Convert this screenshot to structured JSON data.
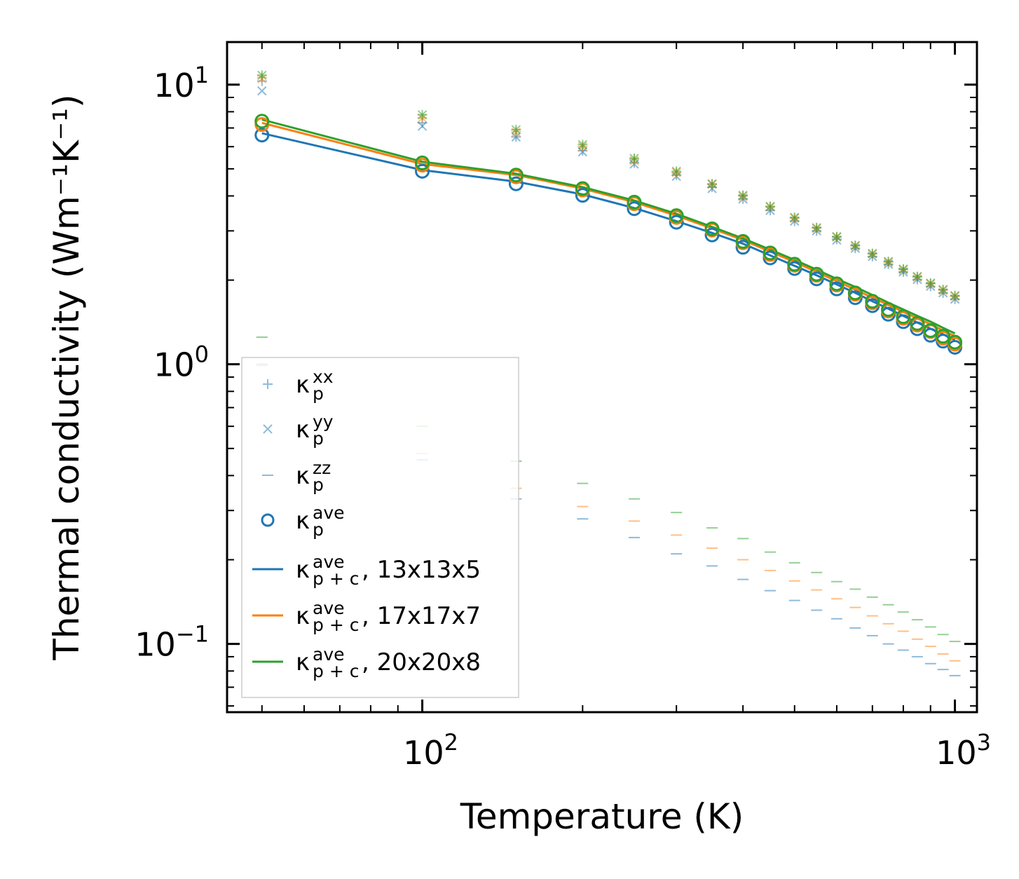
{
  "chart_data": {
    "type": "scatter",
    "xscale": "log",
    "yscale": "log",
    "xlim": [
      43,
      1100
    ],
    "ylim": [
      0.057,
      14.2
    ],
    "xlabel": "Temperature (K)",
    "ylabel": "Thermal conductivity (Wm⁻¹K⁻¹)",
    "xticks": [
      {
        "base": "10",
        "exp": "2"
      },
      {
        "base": "10",
        "exp": "3"
      }
    ],
    "yticks": [
      {
        "base": "10",
        "exp": "−1"
      },
      {
        "base": "10",
        "exp": "0"
      },
      {
        "base": "10",
        "exp": "1"
      }
    ],
    "colors": {
      "s13": "#1f77b4",
      "s17": "#ff7f0e",
      "s20": "#2ca02c"
    },
    "x": [
      50,
      100,
      150,
      200,
      250,
      300,
      350,
      400,
      450,
      500,
      550,
      600,
      650,
      700,
      750,
      800,
      850,
      900,
      950,
      1000
    ],
    "series": [
      {
        "name": "13x13x5",
        "kxx": [
          10.3,
          7.3,
          6.5,
          5.8,
          5.25,
          4.75,
          4.3,
          3.9,
          3.55,
          3.25,
          3.0,
          2.8,
          2.6,
          2.43,
          2.28,
          2.14,
          2.01,
          1.9,
          1.8,
          1.71
        ],
        "kyy": [
          9.5,
          7.1,
          6.5,
          5.75,
          5.2,
          4.7,
          4.25,
          3.9,
          3.55,
          3.25,
          3.0,
          2.78,
          2.6,
          2.43,
          2.28,
          2.14,
          2.01,
          1.9,
          1.8,
          1.71
        ],
        "kzz": [
          1.0,
          0.455,
          0.33,
          0.28,
          0.24,
          0.21,
          0.19,
          0.17,
          0.155,
          0.143,
          0.132,
          0.123,
          0.114,
          0.107,
          0.1,
          0.095,
          0.09,
          0.085,
          0.081,
          0.077
        ],
        "kave": [
          6.6,
          4.9,
          4.42,
          4.02,
          3.6,
          3.22,
          2.9,
          2.62,
          2.4,
          2.2,
          2.02,
          1.86,
          1.73,
          1.62,
          1.51,
          1.42,
          1.34,
          1.27,
          1.21,
          1.15
        ],
        "kpc": [
          6.7,
          4.95,
          4.5,
          4.05,
          3.62,
          3.25,
          2.95,
          2.7,
          2.45,
          2.25,
          2.08,
          1.93,
          1.8,
          1.68,
          1.58,
          1.49,
          1.41,
          1.34,
          1.28,
          1.22
        ]
      },
      {
        "name": "17x17x7",
        "kxx": [
          10.6,
          7.6,
          6.8,
          6.0,
          5.4,
          4.85,
          4.4,
          4.0,
          3.65,
          3.33,
          3.07,
          2.85,
          2.65,
          2.48,
          2.32,
          2.18,
          2.05,
          1.94,
          1.84,
          1.75
        ],
        "kyy": [
          10.5,
          7.6,
          6.75,
          6.0,
          5.35,
          4.85,
          4.4,
          3.98,
          3.65,
          3.33,
          3.06,
          2.85,
          2.65,
          2.48,
          2.32,
          2.18,
          2.05,
          1.94,
          1.84,
          1.75
        ],
        "kzz": [
          0.99,
          0.48,
          0.36,
          0.31,
          0.275,
          0.245,
          0.22,
          0.2,
          0.183,
          0.168,
          0.156,
          0.145,
          0.135,
          0.126,
          0.118,
          0.111,
          0.104,
          0.098,
          0.092,
          0.087
        ],
        "kave": [
          7.2,
          5.15,
          4.68,
          4.2,
          3.75,
          3.35,
          3.02,
          2.72,
          2.47,
          2.26,
          2.08,
          1.92,
          1.78,
          1.66,
          1.55,
          1.46,
          1.38,
          1.31,
          1.24,
          1.18
        ],
        "kpc": [
          7.3,
          5.2,
          4.75,
          4.25,
          3.8,
          3.4,
          3.06,
          2.78,
          2.53,
          2.32,
          2.14,
          1.98,
          1.85,
          1.73,
          1.63,
          1.54,
          1.46,
          1.39,
          1.32,
          1.26
        ]
      },
      {
        "name": "20x20x8",
        "kxx": [
          10.8,
          7.8,
          6.9,
          6.1,
          5.45,
          4.9,
          4.42,
          4.02,
          3.67,
          3.35,
          3.08,
          2.86,
          2.66,
          2.49,
          2.33,
          2.19,
          2.06,
          1.95,
          1.85,
          1.76
        ],
        "kyy": [
          10.8,
          7.8,
          6.9,
          6.1,
          5.45,
          4.9,
          4.42,
          4.02,
          3.67,
          3.35,
          3.08,
          2.86,
          2.66,
          2.49,
          2.33,
          2.19,
          2.06,
          1.95,
          1.85,
          1.76
        ],
        "kzz": [
          1.25,
          0.6,
          0.45,
          0.375,
          0.33,
          0.295,
          0.26,
          0.238,
          0.213,
          0.195,
          0.18,
          0.167,
          0.157,
          0.147,
          0.138,
          0.13,
          0.122,
          0.115,
          0.108,
          0.102
        ],
        "kave": [
          7.4,
          5.25,
          4.75,
          4.25,
          3.8,
          3.4,
          3.05,
          2.75,
          2.5,
          2.28,
          2.1,
          1.94,
          1.8,
          1.68,
          1.57,
          1.48,
          1.4,
          1.32,
          1.26,
          1.2
        ],
        "kpc": [
          7.5,
          5.3,
          4.8,
          4.3,
          3.85,
          3.45,
          3.1,
          2.82,
          2.57,
          2.36,
          2.18,
          2.02,
          1.89,
          1.77,
          1.66,
          1.57,
          1.49,
          1.42,
          1.35,
          1.29
        ]
      }
    ],
    "legend": {
      "position": "lower-left",
      "entries": [
        {
          "marker": "plus",
          "color": "#1f77b4",
          "alpha": 0.5,
          "base": "κ",
          "sub": "p",
          "sup": "xx",
          "suffix": ""
        },
        {
          "marker": "x",
          "color": "#1f77b4",
          "alpha": 0.5,
          "base": "κ",
          "sub": "p",
          "sup": "yy",
          "suffix": ""
        },
        {
          "marker": "dash",
          "color": "#1f77b4",
          "alpha": 0.5,
          "base": "κ",
          "sub": "p",
          "sup": "zz",
          "suffix": ""
        },
        {
          "marker": "circle",
          "color": "#1f77b4",
          "alpha": 1,
          "base": "κ",
          "sub": "p",
          "sup": "ave",
          "suffix": ""
        },
        {
          "marker": "line",
          "color": "#1f77b4",
          "alpha": 1,
          "base": "κ",
          "sub": "p + c",
          "sup": "ave",
          "suffix": ", 13x13x5"
        },
        {
          "marker": "line",
          "color": "#ff7f0e",
          "alpha": 1,
          "base": "κ",
          "sub": "p + c",
          "sup": "ave",
          "suffix": ", 17x17x7"
        },
        {
          "marker": "line",
          "color": "#2ca02c",
          "alpha": 1,
          "base": "κ",
          "sub": "p + c",
          "sup": "ave",
          "suffix": ", 20x20x8"
        }
      ]
    }
  }
}
